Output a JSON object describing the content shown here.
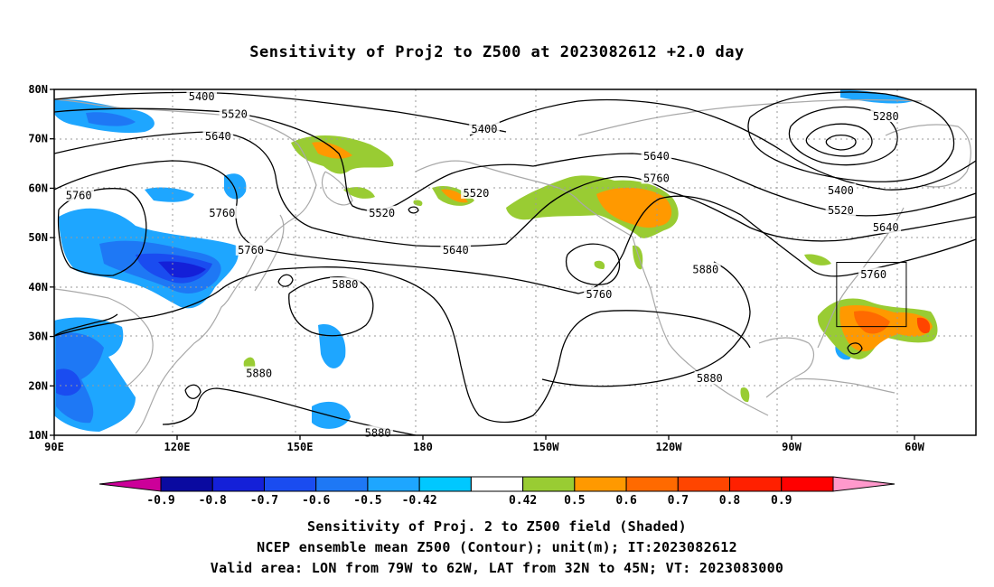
{
  "title": "Sensitivity of Proj2 to Z500 at 2023082612 +2.0 day",
  "map": {
    "lat_labels": [
      {
        "lat": 80,
        "label": "80N"
      },
      {
        "lat": 70,
        "label": "70N"
      },
      {
        "lat": 60,
        "label": "60N"
      },
      {
        "lat": 50,
        "label": "50N"
      },
      {
        "lat": 40,
        "label": "40N"
      },
      {
        "lat": 30,
        "label": "30N"
      },
      {
        "lat": 20,
        "label": "20N"
      },
      {
        "lat": 10,
        "label": "10N"
      }
    ],
    "lon_labels": [
      {
        "lon": 90,
        "label": "90E"
      },
      {
        "lon": 120,
        "label": "120E"
      },
      {
        "lon": 150,
        "label": "150E"
      },
      {
        "lon": 180,
        "label": "180"
      },
      {
        "lon": 210,
        "label": "150W"
      },
      {
        "lon": 240,
        "label": "120W"
      },
      {
        "lon": 270,
        "label": "90W"
      },
      {
        "lon": 300,
        "label": "60W"
      }
    ],
    "lon_range": [
      90,
      315
    ],
    "lat_range": [
      10,
      80
    ],
    "contour_labels": [
      {
        "text": "5400",
        "lon": 126,
        "lat": 78.5
      },
      {
        "text": "5520",
        "lon": 134,
        "lat": 75
      },
      {
        "text": "5640",
        "lon": 130,
        "lat": 70.5
      },
      {
        "text": "5400",
        "lon": 195,
        "lat": 72
      },
      {
        "text": "5520",
        "lon": 193,
        "lat": 59
      },
      {
        "text": "5520",
        "lon": 170,
        "lat": 55
      },
      {
        "text": "5640",
        "lon": 237,
        "lat": 66.5
      },
      {
        "text": "5760",
        "lon": 237,
        "lat": 62
      },
      {
        "text": "5640",
        "lon": 188,
        "lat": 47.5
      },
      {
        "text": "5760",
        "lon": 96,
        "lat": 58.5
      },
      {
        "text": "5760",
        "lon": 131,
        "lat": 55
      },
      {
        "text": "5760",
        "lon": 138,
        "lat": 47.5
      },
      {
        "text": "5880",
        "lon": 161,
        "lat": 40.5
      },
      {
        "text": "5760",
        "lon": 223,
        "lat": 38.5
      },
      {
        "text": "5880",
        "lon": 249,
        "lat": 43.5
      },
      {
        "text": "5280",
        "lon": 293,
        "lat": 74.5
      },
      {
        "text": "5400",
        "lon": 282,
        "lat": 59.5
      },
      {
        "text": "5520",
        "lon": 282,
        "lat": 55.5
      },
      {
        "text": "5640",
        "lon": 293,
        "lat": 52
      },
      {
        "text": "5760",
        "lon": 290,
        "lat": 42.5
      },
      {
        "text": "5880",
        "lon": 140,
        "lat": 22.5
      },
      {
        "text": "5880",
        "lon": 250,
        "lat": 21.5
      },
      {
        "text": "5880",
        "lon": 169,
        "lat": 10.5
      }
    ],
    "valid_box": {
      "lon_min": 281,
      "lon_max": 298,
      "lat_min": 32,
      "lat_max": 45
    }
  },
  "colorbar": {
    "labels": [
      "-0.9",
      "-0.8",
      "-0.7",
      "-0.6",
      "-0.5",
      "-0.42",
      "0.42",
      "0.5",
      "0.6",
      "0.7",
      "0.8",
      "0.9"
    ],
    "colors": [
      "#cc0099",
      "#0a0aa0",
      "#1420d8",
      "#1a4cf0",
      "#1e78f5",
      "#1ea6ff",
      "#00c8ff",
      "#ffffff",
      "#99cc33",
      "#ff9900",
      "#ff6a00",
      "#ff4500",
      "#ff2000",
      "#ff0000",
      "#ff99cc"
    ]
  },
  "footer": {
    "line1": "Sensitivity of Proj. 2 to Z500 field (Shaded)",
    "line2": "NCEP ensemble mean Z500 (Contour); unit(m); IT:2023082612",
    "line3": "Valid area: LON from 79W to 62W, LAT from 32N to 45N; VT: 2023083000"
  }
}
